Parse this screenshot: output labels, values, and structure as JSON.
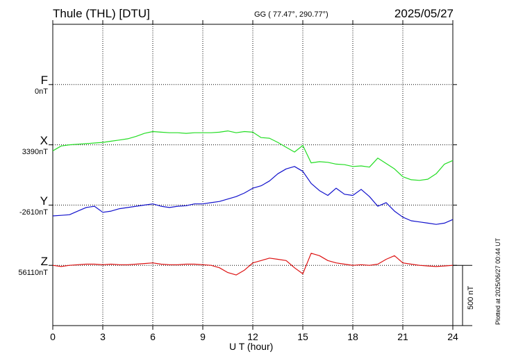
{
  "header": {
    "station": "Thule (THL)  [DTU]",
    "coords": "GG ( 77.47°, 290.77°)",
    "date": "2025/05/27"
  },
  "plotted_text": "Plotted at 2025/06/27 00:44 UT",
  "scale_label": "500 nT",
  "colors": {
    "F": "#f0b400",
    "X": "#22dd22",
    "Y": "#1010cc",
    "Z": "#dd1111",
    "axis": "#000000"
  },
  "chart_data": {
    "type": "line",
    "title": "Thule (THL)  [DTU]",
    "xlabel": "U T (hour)",
    "ylabel": "",
    "xlim": [
      0,
      24
    ],
    "xticks": [
      0,
      3,
      6,
      9,
      12,
      15,
      18,
      21,
      24
    ],
    "ylim": [
      -1500,
      1000
    ],
    "grid": true,
    "scale_bar_nT": 500,
    "series": [
      {
        "name": "F",
        "baseline_label": "0nT",
        "color": "#f0b400",
        "offset_nT": 500,
        "x": [],
        "y": []
      },
      {
        "name": "X",
        "baseline_label": "3390nT",
        "color": "#22dd22",
        "offset_nT": 0,
        "x": [
          0,
          0.5,
          1,
          1.5,
          2,
          2.5,
          3,
          3.5,
          4,
          4.5,
          5,
          5.5,
          6,
          6.5,
          7,
          7.5,
          8,
          8.5,
          9,
          9.5,
          10,
          10.5,
          11,
          11.5,
          12,
          12.5,
          13,
          13.5,
          14,
          14.5,
          15,
          15.5,
          16,
          16.5,
          17,
          17.5,
          18,
          18.5,
          19,
          19.5,
          20,
          20.5,
          21,
          21.5,
          22,
          22.5,
          23,
          23.5,
          24
        ],
        "y": [
          -50,
          -10,
          0,
          5,
          10,
          15,
          20,
          30,
          40,
          50,
          70,
          95,
          110,
          105,
          100,
          100,
          95,
          100,
          100,
          100,
          105,
          115,
          100,
          110,
          105,
          60,
          55,
          20,
          -20,
          -60,
          -5,
          -150,
          -140,
          -145,
          -160,
          -165,
          -180,
          -175,
          -185,
          -110,
          -155,
          -200,
          -265,
          -290,
          -295,
          -285,
          -240,
          -160,
          -130
        ]
      },
      {
        "name": "Y",
        "baseline_label": "-2610nT",
        "color": "#1010cc",
        "offset_nT": -500,
        "x": [
          0,
          0.5,
          1,
          1.5,
          2,
          2.5,
          3,
          3.5,
          4,
          4.5,
          5,
          5.5,
          6,
          6.5,
          7,
          7.5,
          8,
          8.5,
          9,
          9.5,
          10,
          10.5,
          11,
          11.5,
          12,
          12.5,
          13,
          13.5,
          14,
          14.5,
          15,
          15.5,
          16,
          16.5,
          17,
          17.5,
          18,
          18.5,
          19,
          19.5,
          20,
          20.5,
          21,
          21.5,
          22,
          22.5,
          23,
          23.5,
          24
        ],
        "y": [
          -90,
          -85,
          -80,
          -50,
          -20,
          -10,
          -60,
          -50,
          -30,
          -20,
          -10,
          0,
          10,
          -10,
          -20,
          -10,
          -5,
          10,
          10,
          20,
          30,
          50,
          70,
          100,
          140,
          160,
          200,
          260,
          300,
          320,
          280,
          180,
          120,
          80,
          140,
          90,
          80,
          130,
          70,
          -10,
          20,
          -50,
          -100,
          -130,
          -140,
          -150,
          -160,
          -150,
          -120
        ]
      },
      {
        "name": "Z",
        "baseline_label": "56110nT",
        "color": "#dd1111",
        "offset_nT": -1000,
        "x": [
          0,
          0.5,
          1,
          1.5,
          2,
          2.5,
          3,
          3.5,
          4,
          4.5,
          5,
          5.5,
          6,
          6.5,
          7,
          7.5,
          8,
          8.5,
          9,
          9.5,
          10,
          10.5,
          11,
          11.5,
          12,
          12.5,
          13,
          13.5,
          14,
          14.5,
          15,
          15.5,
          16,
          16.5,
          17,
          17.5,
          18,
          18.5,
          19,
          19.5,
          20,
          20.5,
          21,
          21.5,
          22,
          22.5,
          23,
          23.5,
          24
        ],
        "y": [
          0,
          -10,
          0,
          5,
          10,
          10,
          5,
          10,
          5,
          5,
          10,
          15,
          20,
          10,
          5,
          5,
          10,
          10,
          5,
          0,
          -20,
          -60,
          -80,
          -40,
          20,
          40,
          60,
          50,
          40,
          -20,
          -70,
          100,
          80,
          40,
          20,
          10,
          0,
          5,
          0,
          10,
          50,
          80,
          20,
          10,
          0,
          -5,
          -10,
          -5,
          0
        ]
      }
    ]
  }
}
